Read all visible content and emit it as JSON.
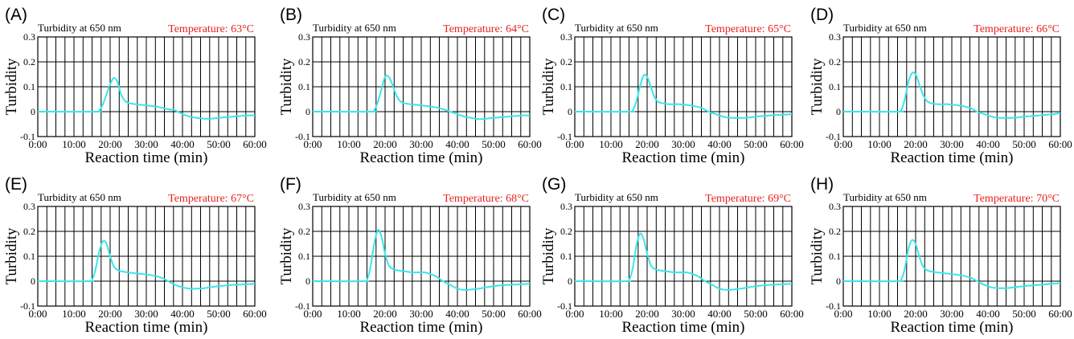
{
  "figure": {
    "colors": {
      "curve": "#38e6ea",
      "temperature_text": "#e8231c",
      "grid": "#000000"
    },
    "x_ticks": [
      "0:00",
      "10:00",
      "20:00",
      "30:00",
      "40:00",
      "50:00",
      "60:00"
    ],
    "y_ticks": [
      "0.3",
      "0.2",
      "0.1",
      "0",
      "-0.1"
    ]
  },
  "chart_data": [
    {
      "type": "line",
      "panel_label": "(A)",
      "title": "Turbidity at 650 nm",
      "annotation": "Temperature: 63°C",
      "xlabel": "Reaction time (min)",
      "ylabel": "Turbidity",
      "xlim": [
        0,
        60
      ],
      "ylim": [
        -0.1,
        0.3
      ],
      "grid": true,
      "x": [
        0,
        16,
        17,
        18,
        19,
        20,
        21,
        22,
        23,
        24,
        25,
        27,
        30,
        33,
        36,
        38,
        40,
        42,
        44,
        46,
        48,
        50,
        54,
        58,
        60
      ],
      "y": [
        0,
        0,
        0.005,
        0.03,
        0.07,
        0.11,
        0.135,
        0.12,
        0.07,
        0.045,
        0.035,
        0.03,
        0.025,
        0.02,
        0.01,
        0.005,
        -0.01,
        -0.02,
        -0.025,
        -0.028,
        -0.028,
        -0.025,
        -0.02,
        -0.015,
        -0.015
      ]
    },
    {
      "type": "line",
      "panel_label": "(B)",
      "title": "Turbidity at 650 nm",
      "annotation": "Temperature: 64°C",
      "xlabel": "Reaction time (min)",
      "ylabel": "Turbidity",
      "xlim": [
        0,
        60
      ],
      "ylim": [
        -0.1,
        0.3
      ],
      "grid": true,
      "x": [
        0,
        16,
        17,
        18,
        19,
        20,
        21,
        22,
        23,
        24,
        25,
        27,
        30,
        33,
        36,
        38,
        40,
        42,
        44,
        46,
        48,
        50,
        54,
        58,
        60
      ],
      "y": [
        0,
        0,
        0.005,
        0.04,
        0.09,
        0.14,
        0.14,
        0.11,
        0.07,
        0.045,
        0.035,
        0.03,
        0.025,
        0.02,
        0.01,
        0.0,
        -0.01,
        -0.02,
        -0.025,
        -0.03,
        -0.028,
        -0.025,
        -0.02,
        -0.015,
        -0.015
      ]
    },
    {
      "type": "line",
      "panel_label": "(C)",
      "title": "Turbidity at 650 nm",
      "annotation": "Temperature: 65°C",
      "xlabel": "Reaction time (min)",
      "ylabel": "Turbidity",
      "xlim": [
        0,
        60
      ],
      "ylim": [
        -0.1,
        0.3
      ],
      "grid": true,
      "x": [
        0,
        15,
        16,
        17,
        18,
        19,
        20,
        21,
        22,
        23,
        24,
        26,
        29,
        32,
        35,
        37,
        39,
        41,
        43,
        45,
        47,
        50,
        54,
        58,
        60
      ],
      "y": [
        0,
        0,
        0.005,
        0.04,
        0.1,
        0.145,
        0.14,
        0.1,
        0.06,
        0.04,
        0.035,
        0.03,
        0.03,
        0.025,
        0.015,
        0.0,
        -0.01,
        -0.02,
        -0.025,
        -0.025,
        -0.025,
        -0.02,
        -0.015,
        -0.012,
        -0.01
      ]
    },
    {
      "type": "line",
      "panel_label": "(D)",
      "title": "Turbidity at 650 nm",
      "annotation": "Temperature: 66°C",
      "xlabel": "Reaction time (min)",
      "ylabel": "Turbidity",
      "xlim": [
        0,
        60
      ],
      "ylim": [
        -0.1,
        0.3
      ],
      "grid": true,
      "x": [
        0,
        15,
        16,
        17,
        18,
        19,
        20,
        21,
        22,
        23,
        24,
        26,
        29,
        32,
        35,
        37,
        39,
        41,
        43,
        45,
        47,
        50,
        54,
        58,
        60
      ],
      "y": [
        0,
        0,
        0.005,
        0.05,
        0.12,
        0.155,
        0.15,
        0.11,
        0.07,
        0.045,
        0.035,
        0.03,
        0.03,
        0.025,
        0.015,
        0.0,
        -0.01,
        -0.02,
        -0.025,
        -0.025,
        -0.025,
        -0.02,
        -0.015,
        -0.01,
        -0.005
      ]
    },
    {
      "type": "line",
      "panel_label": "(E)",
      "title": "Turbidity at 650 nm",
      "annotation": "Temperature: 67°C",
      "xlabel": "Reaction time (min)",
      "ylabel": "Turbidity",
      "xlim": [
        0,
        60
      ],
      "ylim": [
        -0.1,
        0.3
      ],
      "grid": true,
      "x": [
        0,
        14,
        15,
        16,
        17,
        18,
        19,
        20,
        21,
        22,
        23,
        25,
        28,
        31,
        34,
        36,
        38,
        40,
        42,
        44,
        46,
        50,
        54,
        58,
        60
      ],
      "y": [
        0,
        0,
        0.005,
        0.05,
        0.12,
        0.16,
        0.15,
        0.1,
        0.06,
        0.045,
        0.04,
        0.035,
        0.03,
        0.025,
        0.015,
        0.0,
        -0.015,
        -0.025,
        -0.03,
        -0.03,
        -0.028,
        -0.02,
        -0.015,
        -0.012,
        -0.01
      ]
    },
    {
      "type": "line",
      "panel_label": "(F)",
      "title": "Turbidity at 650 nm",
      "annotation": "Temperature: 68°C",
      "xlabel": "Reaction time (min)",
      "ylabel": "Turbidity",
      "xlim": [
        0,
        60
      ],
      "ylim": [
        -0.1,
        0.3
      ],
      "grid": true,
      "x": [
        0,
        14,
        15,
        16,
        17,
        18,
        19,
        20,
        21,
        22,
        23,
        25,
        28,
        31,
        34,
        36,
        38,
        40,
        42,
        44,
        46,
        50,
        54,
        58,
        60
      ],
      "y": [
        0,
        0,
        0.005,
        0.06,
        0.15,
        0.205,
        0.18,
        0.11,
        0.065,
        0.05,
        0.045,
        0.04,
        0.035,
        0.035,
        0.02,
        0.0,
        -0.015,
        -0.03,
        -0.035,
        -0.033,
        -0.03,
        -0.02,
        -0.015,
        -0.012,
        -0.01
      ]
    },
    {
      "type": "line",
      "panel_label": "(G)",
      "title": "Turbidity at 650 nm",
      "annotation": "Temperature: 69°C",
      "xlabel": "Reaction time (min)",
      "ylabel": "Turbidity",
      "xlim": [
        0,
        60
      ],
      "ylim": [
        -0.1,
        0.3
      ],
      "grid": true,
      "x": [
        0,
        14,
        15,
        16,
        17,
        18,
        19,
        20,
        21,
        22,
        23,
        25,
        28,
        31,
        34,
        36,
        38,
        40,
        42,
        44,
        46,
        50,
        54,
        58,
        60
      ],
      "y": [
        0,
        0,
        0.005,
        0.05,
        0.14,
        0.19,
        0.17,
        0.11,
        0.065,
        0.05,
        0.045,
        0.04,
        0.035,
        0.035,
        0.02,
        0.0,
        -0.015,
        -0.03,
        -0.035,
        -0.033,
        -0.03,
        -0.02,
        -0.015,
        -0.012,
        -0.01
      ]
    },
    {
      "type": "line",
      "panel_label": "(H)",
      "title": "Turbidity at 650 nm",
      "annotation": "Temperature: 70°C",
      "xlabel": "Reaction time (min)",
      "ylabel": "Turbidity",
      "xlim": [
        0,
        60
      ],
      "ylim": [
        -0.1,
        0.3
      ],
      "grid": true,
      "x": [
        0,
        15,
        16,
        17,
        18,
        19,
        20,
        21,
        22,
        23,
        24,
        26,
        29,
        32,
        35,
        37,
        39,
        41,
        43,
        45,
        47,
        50,
        54,
        58,
        60
      ],
      "y": [
        0,
        0,
        0.005,
        0.05,
        0.13,
        0.165,
        0.15,
        0.1,
        0.06,
        0.045,
        0.04,
        0.035,
        0.03,
        0.025,
        0.015,
        0.0,
        -0.015,
        -0.025,
        -0.028,
        -0.028,
        -0.025,
        -0.02,
        -0.015,
        -0.01,
        -0.008
      ]
    }
  ]
}
